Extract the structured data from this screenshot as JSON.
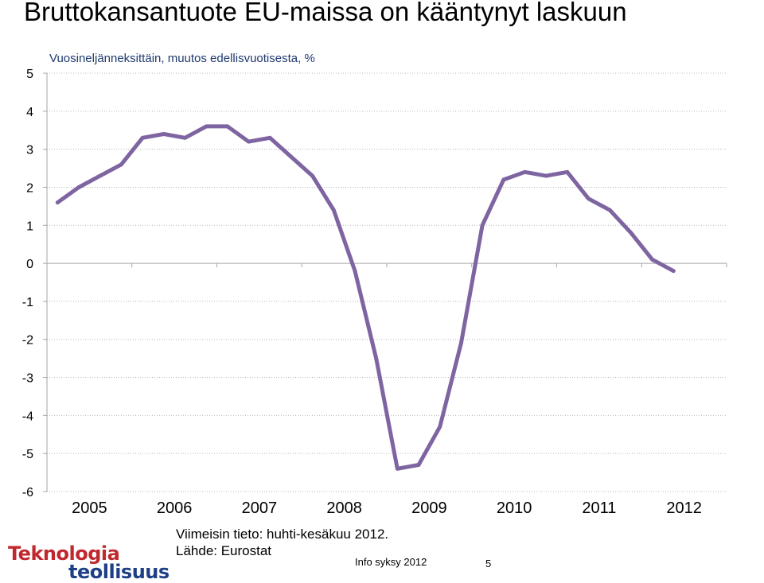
{
  "title": "Bruttokansantuote EU-maissa on kääntynyt laskuun",
  "subtitle": "Vuosineljänneksittäin, muutos edellisvuotisesta, %",
  "notes": {
    "latest": "Viimeisin tieto: huhti-kesäkuu 2012.",
    "source": "Lähde: Eurostat"
  },
  "footer": {
    "info": "Info syksy 2012",
    "page": "5"
  },
  "logo": {
    "line1": "Teknologia",
    "line2": "teollisuus"
  },
  "colors": {
    "series": "#7e65a1",
    "grid": "#b8b8b8",
    "axis": "#a6a6a6",
    "logo_red": "#c0282e",
    "logo_blue": "#1d3f86"
  },
  "chart_data": {
    "type": "line",
    "title": "Bruttokansantuote EU-maissa on kääntynyt laskuun",
    "subtitle": "Vuosineljänneksittäin, muutos edellisvuotisesta, %",
    "xlabel": "",
    "ylabel": "",
    "ylim": [
      -6,
      5
    ],
    "yticks": [
      "5",
      "4",
      "3",
      "2",
      "1",
      "0",
      "-1",
      "-2",
      "-3",
      "-4",
      "-5",
      "-6"
    ],
    "grid": "horizontal dotted",
    "year_labels": [
      "2005",
      "2006",
      "2007",
      "2008",
      "2009",
      "2010",
      "2011",
      "2012"
    ],
    "x": [
      "2005Q1",
      "2005Q2",
      "2005Q3",
      "2005Q4",
      "2006Q1",
      "2006Q2",
      "2006Q3",
      "2006Q4",
      "2007Q1",
      "2007Q2",
      "2007Q3",
      "2007Q4",
      "2008Q1",
      "2008Q2",
      "2008Q3",
      "2008Q4",
      "2009Q1",
      "2009Q2",
      "2009Q3",
      "2009Q4",
      "2010Q1",
      "2010Q2",
      "2010Q3",
      "2010Q4",
      "2011Q1",
      "2011Q2",
      "2011Q3",
      "2011Q4",
      "2012Q1",
      "2012Q2"
    ],
    "series": [
      {
        "values": [
          1.6,
          2.0,
          2.3,
          2.6,
          3.3,
          3.4,
          3.3,
          3.6,
          3.6,
          3.2,
          3.3,
          2.8,
          2.3,
          1.4,
          -0.2,
          -2.5,
          -5.4,
          -5.3,
          -4.3,
          -2.1,
          1.0,
          2.2,
          2.4,
          2.3,
          2.4,
          1.7,
          1.4,
          0.8,
          0.1,
          -0.2
        ]
      }
    ]
  }
}
